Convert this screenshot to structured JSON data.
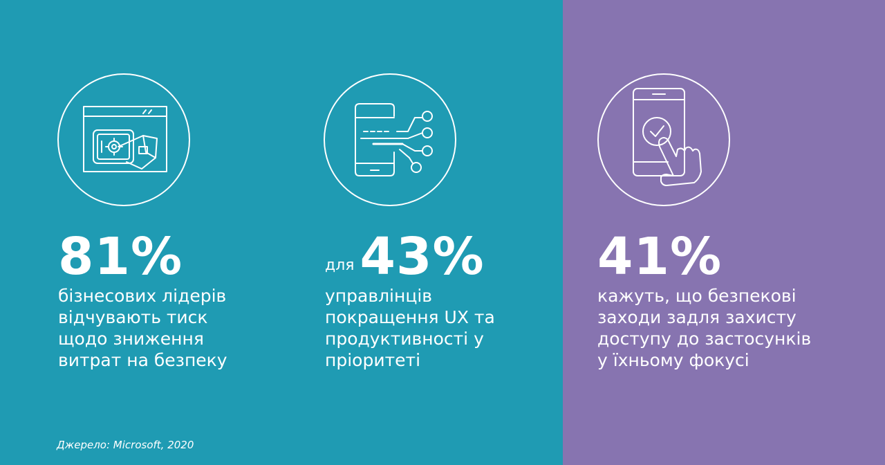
{
  "stats": [
    {
      "prefix": "",
      "value": "81%",
      "lines": [
        "бізнесових лідерів",
        "відчувають тиск",
        "щодо зниження",
        "витрат на безпеку"
      ],
      "icon": "safe-wallet-icon"
    },
    {
      "prefix": "для",
      "value": "43%",
      "lines": [
        "управлінців",
        "покращення UX та",
        "продуктивності у",
        "пріоритеті"
      ],
      "icon": "mobile-circuit-icon"
    },
    {
      "prefix": "",
      "value": "41%",
      "lines": [
        "кажуть, що безпекові",
        "заходи задля захисту",
        "доступу до застосунків",
        "у їхньому фокусі"
      ],
      "icon": "phone-touch-check-icon"
    }
  ],
  "source": "Джерело: Microsoft, 2020",
  "colors": {
    "teal": "#1f9bb3",
    "purple": "#8774b0",
    "text": "#ffffff"
  }
}
